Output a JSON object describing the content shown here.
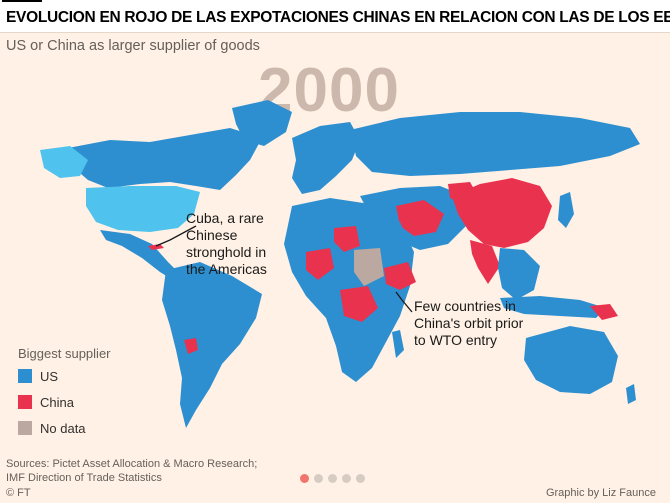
{
  "headline": "EVOLUCION EN ROJO DE LAS EXPOTACIONES CHINAS EN RELACION CON LAS DE LOS EEUU",
  "subtitle": "US or China as larger supplier of goods",
  "year": "2000",
  "annotations": {
    "cuba": "Cuba, a rare Chinese stronghold in the Americas",
    "few": "Few countries in China's orbit prior to WTO entry"
  },
  "legend": {
    "title": "Biggest supplier",
    "items": [
      {
        "label": "US",
        "color": "#2e8fd0"
      },
      {
        "label": "China",
        "color": "#e8324e"
      },
      {
        "label": "No data",
        "color": "#bba8a0"
      }
    ]
  },
  "colors": {
    "us": "#2e8fd0",
    "us_highlight": "#4fc3ee",
    "china": "#e8324e",
    "no_data": "#bba8a0",
    "background": "#fff1e5"
  },
  "sources": {
    "line1": "Sources: Pictet Asset Allocation & Macro Research;",
    "line2": "IMF Direction of Trade Statistics"
  },
  "ft_mark": "© FT",
  "credit": "Graphic by Liz Faunce",
  "pagination": {
    "total": 5,
    "active": 1
  }
}
